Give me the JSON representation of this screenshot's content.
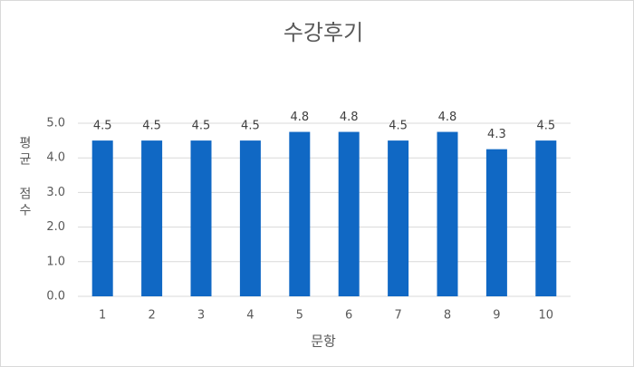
{
  "chart_data": {
    "type": "bar",
    "title": "수강후기",
    "x_label": "문항",
    "y_label": "평균 점수",
    "categories": [
      "1",
      "2",
      "3",
      "4",
      "5",
      "6",
      "7",
      "8",
      "9",
      "10"
    ],
    "values": [
      4.5,
      4.5,
      4.5,
      4.5,
      4.75,
      4.75,
      4.5,
      4.75,
      4.25,
      4.5
    ],
    "value_labels": [
      "4.5",
      "4.5",
      "4.5",
      "4.5",
      "4.8",
      "4.8",
      "4.5",
      "4.8",
      "4.3",
      "4.5"
    ],
    "color": "#1068c4",
    "ylim": [
      0,
      5
    ],
    "yticks": [
      {
        "value": 0,
        "label": "0.0"
      },
      {
        "value": 1,
        "label": "1.0"
      },
      {
        "value": 2,
        "label": "2.0"
      },
      {
        "value": 3,
        "label": "3.0"
      },
      {
        "value": 4,
        "label": "4.0"
      },
      {
        "value": 5,
        "label": "5.0"
      }
    ],
    "grid": true
  }
}
